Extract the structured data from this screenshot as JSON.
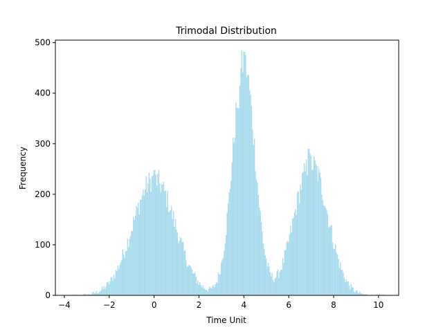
{
  "chart_data": {
    "type": "bar",
    "title": "Trimodal Distribution",
    "xlabel": "Time Unit",
    "ylabel": "Frequency",
    "xlim": [
      -4.4,
      10.9
    ],
    "ylim": [
      0,
      505
    ],
    "bar_color": "#a8dcee",
    "bin_width": 0.0435,
    "x_ticks": [
      -4,
      -2,
      0,
      2,
      4,
      6,
      8,
      10
    ],
    "x_tick_labels": [
      "−4",
      "−2",
      "0",
      "2",
      "4",
      "6",
      "8",
      "10"
    ],
    "y_ticks": [
      0,
      100,
      200,
      300,
      400,
      500
    ],
    "y_tick_labels": [
      "0",
      "100",
      "200",
      "300",
      "400",
      "500"
    ],
    "series": [
      {
        "modes": [
          {
            "center": 0.0,
            "peak": 230,
            "sd": 0.95
          },
          {
            "center": 4.0,
            "peak": 460,
            "sd": 0.5
          },
          {
            "center": 7.0,
            "peak": 260,
            "sd": 0.75
          }
        ],
        "x_range": [
          -3.9,
          10.3
        ],
        "highlights": [
          {
            "x": 0.0,
            "value": 248
          },
          {
            "x": 4.0,
            "value": 482
          },
          {
            "x": 6.9,
            "value": 290
          },
          {
            "x": 3.75,
            "value": 370
          }
        ]
      }
    ]
  }
}
